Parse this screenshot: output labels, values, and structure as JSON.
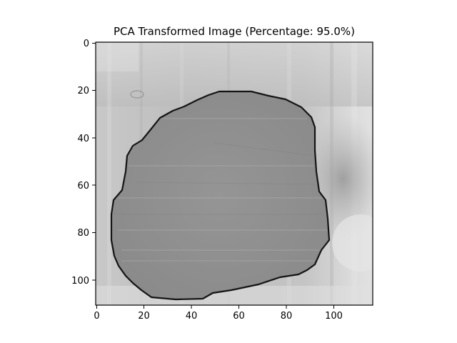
{
  "title": "PCA Transformed Image (Percentage: 95.0%)",
  "image": {
    "description_free": true,
    "colormap": "gray",
    "width_units": 118,
    "height_units": 111
  },
  "axes": {
    "x_ticks": [
      "0",
      "20",
      "40",
      "60",
      "80",
      "100"
    ],
    "y_ticks": [
      "0",
      "20",
      "40",
      "60",
      "80",
      "100"
    ]
  },
  "colors": {
    "outline": "#141414",
    "region_fill": "#8f8f8f",
    "background_light": "#d6d6d6",
    "background_dark": "#a8a8a8",
    "frame": "#000000"
  }
}
